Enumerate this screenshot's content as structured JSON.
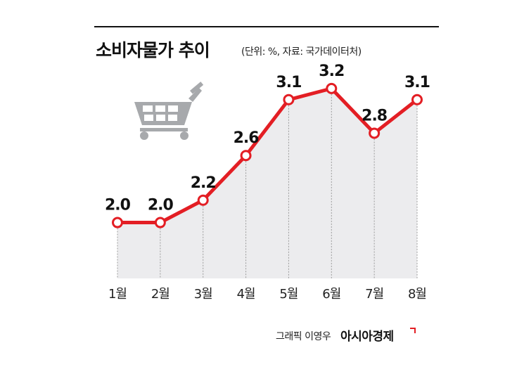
{
  "header": {
    "title": "소비자물가 추이",
    "subtitle": "(단위: %, 자료: 국가데이터처)"
  },
  "footer": {
    "credit": "그래픽 이영우",
    "brand": "아시아경제"
  },
  "icons": {
    "decoration": "shopping-cart-icon"
  },
  "colors": {
    "line": "#e31e24",
    "area": "#ececee",
    "cart": "#a7a9ac"
  },
  "chart_data": {
    "type": "line",
    "title": "소비자물가 추이",
    "categories": [
      "1월",
      "2월",
      "3월",
      "4월",
      "5월",
      "6월",
      "7월",
      "8월"
    ],
    "values": [
      2.0,
      2.0,
      2.2,
      2.6,
      3.1,
      3.2,
      2.8,
      3.1
    ],
    "data_labels": [
      "2.0",
      "2.0",
      "2.2",
      "2.6",
      "3.1",
      "3.2",
      "2.8",
      "3.1"
    ],
    "ylim": [
      1.5,
      3.3
    ],
    "grid": false,
    "legend": "none",
    "fill": true,
    "xlabel": "",
    "ylabel": ""
  }
}
